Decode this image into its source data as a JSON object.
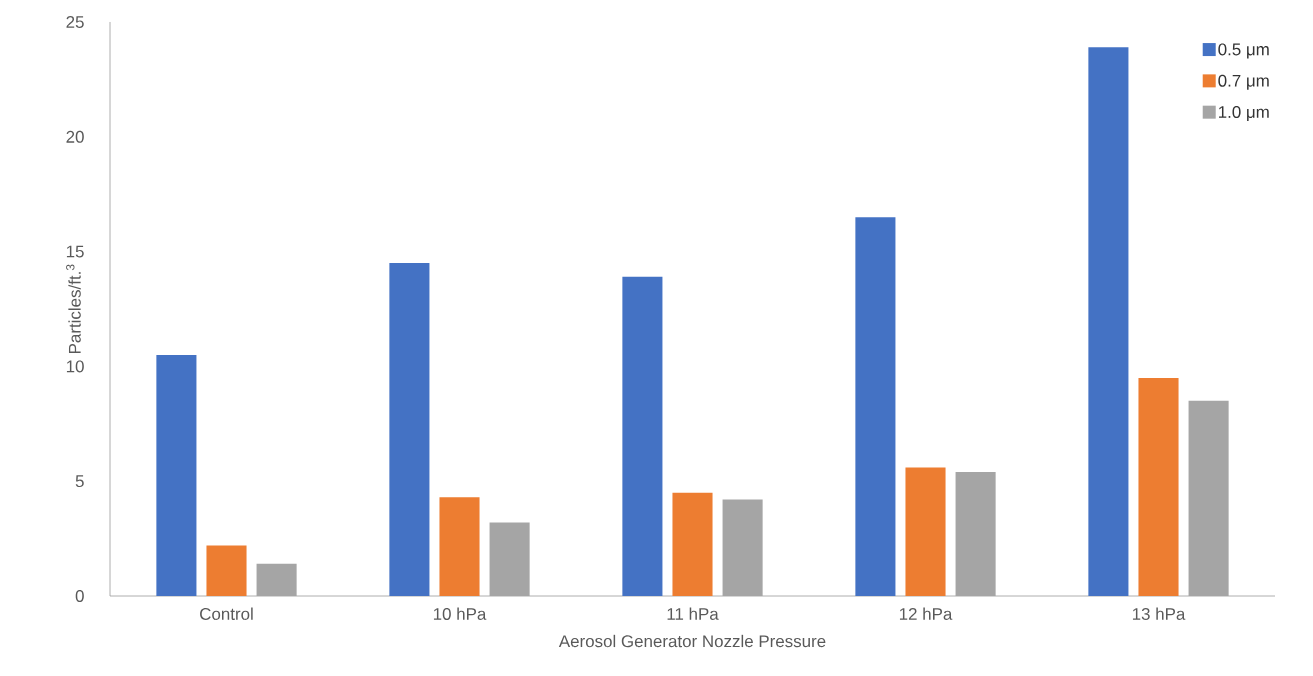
{
  "chart_data": {
    "type": "bar",
    "xlabel": "Aerosol Generator Nozzle Pressure",
    "ylabel": "Particles/ft.$^{3}$",
    "categories": [
      "Control",
      "10 hPa",
      "11 hPa",
      "12 hPa",
      "13 hPa"
    ],
    "series": [
      {
        "name": "0.5 μm",
        "color": "#4472c4",
        "values": [
          10.5,
          14.5,
          13.9,
          16.5,
          23.9
        ]
      },
      {
        "name": "0.7 μm",
        "color": "#ed7d31",
        "values": [
          2.2,
          4.3,
          4.5,
          5.6,
          9.5
        ]
      },
      {
        "name": "1.0 μm",
        "color": "#a5a5a5",
        "values": [
          1.4,
          3.2,
          4.2,
          5.4,
          8.5
        ]
      }
    ],
    "ylim": [
      0,
      25
    ],
    "yticks": [
      0,
      5,
      10,
      15,
      20,
      25
    ],
    "legend": "top right"
  }
}
